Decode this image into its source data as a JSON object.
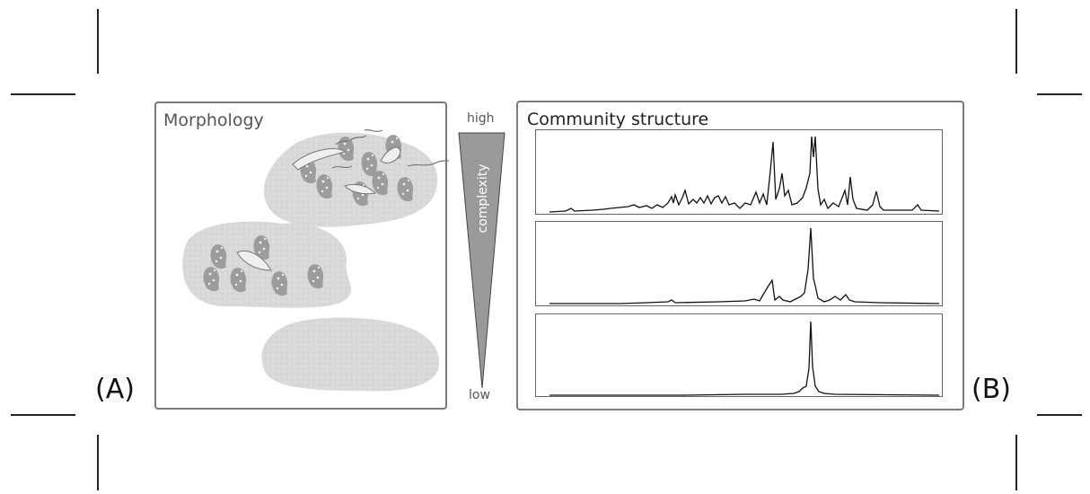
{
  "labels": {
    "panel_a_marker": "(A)",
    "panel_b_marker": "(B)",
    "morphology_title": "Morphology",
    "community_title": "Community structure",
    "gradient_high": "high",
    "gradient_low": "low",
    "gradient_axis": "complexity"
  },
  "colors": {
    "panel_border": "#7a7a7a",
    "blob_fill": "#d8d8d8",
    "gradient_fill": "#9a9a9a",
    "trace_line": "#111111"
  },
  "icons": [
    "crop-mark",
    "microbial-aggregate",
    "gradient-triangle"
  ]
}
